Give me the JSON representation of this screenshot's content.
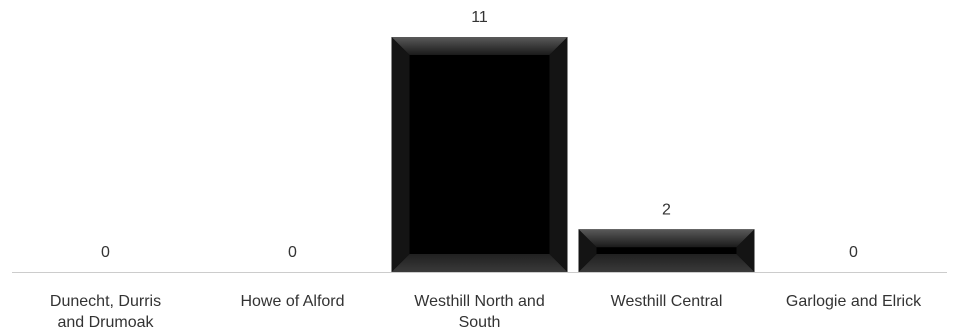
{
  "chart_data": {
    "type": "bar",
    "categories": [
      [
        "Dunecht, Durris",
        "and Drumoak"
      ],
      [
        "Howe of Alford"
      ],
      [
        "Westhill North and",
        "South"
      ],
      [
        "Westhill Central"
      ],
      [
        "Garlogie and Elrick"
      ]
    ],
    "values": [
      0,
      0,
      11,
      2,
      0
    ],
    "data_labels": [
      "0",
      "0",
      "11",
      "2",
      "0"
    ],
    "title": "",
    "xlabel": "",
    "ylabel": "",
    "ylim": [
      0,
      11
    ],
    "grid": false,
    "legend": "none",
    "colors": {
      "bar": "#000000",
      "baseline": "#cccccc",
      "text": "#333333"
    }
  }
}
